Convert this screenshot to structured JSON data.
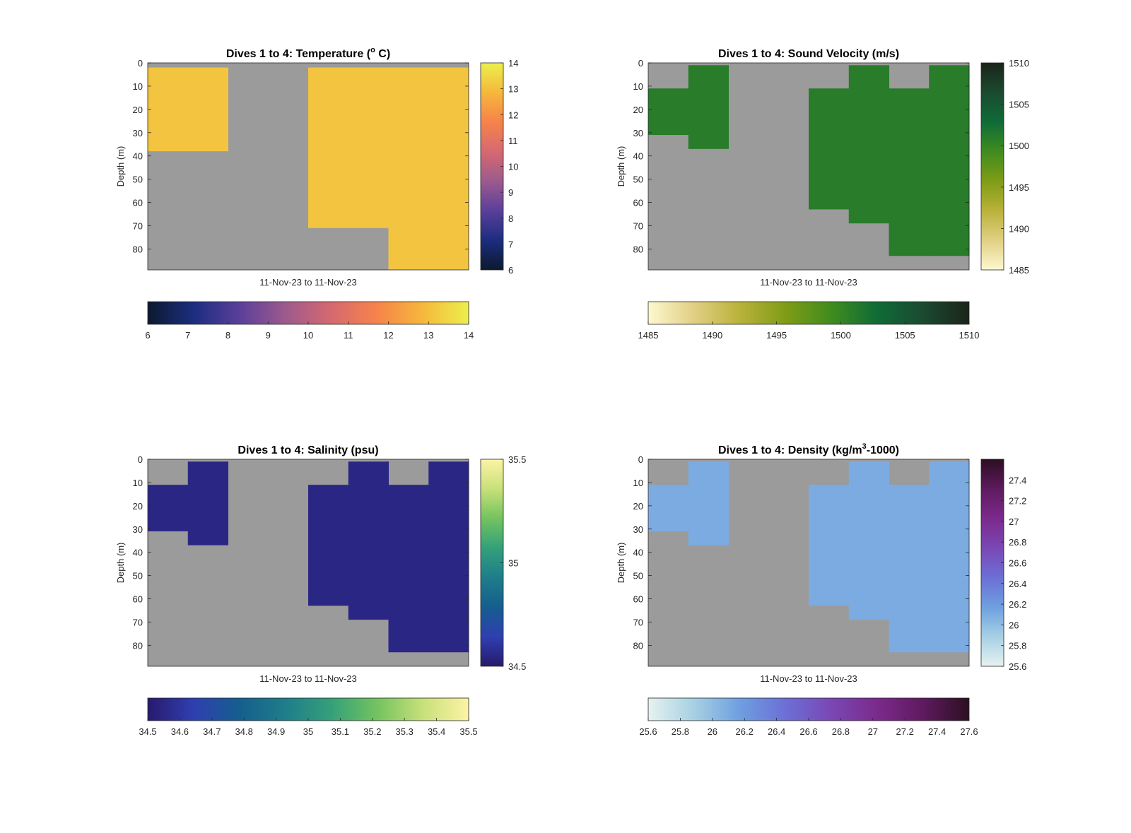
{
  "figure": {
    "background": "#ffffff",
    "no_data_color": "#9b9b9b"
  },
  "chart_data": [
    {
      "type": "heatmap",
      "title": "Dives 1 to 4: Temperature (",
      "title_sup": "o",
      "title_suffix": " C)",
      "xlabel": "11-Nov-23 to 11-Nov-23",
      "ylabel": "Depth (m)",
      "ylim": [
        0,
        89
      ],
      "yticks": [
        0,
        10,
        20,
        30,
        40,
        50,
        60,
        70,
        80
      ],
      "columns": [
        {
          "x": 1,
          "depth_min": 2,
          "depth_max": 38
        },
        {
          "x": 2,
          "depth_min": null,
          "depth_max": null
        },
        {
          "x": 3,
          "depth_min": 2,
          "depth_max": 71
        },
        {
          "x": 4,
          "depth_min": 2,
          "depth_max": 89
        }
      ],
      "value": 13.1,
      "colorbar": {
        "colors": [
          "#0b1a2e",
          "#1c2d80",
          "#5a3f9a",
          "#9d5a8d",
          "#d66970",
          "#f6834a",
          "#f5b83c",
          "#ecf04d"
        ],
        "limits": [
          6,
          14
        ],
        "ticks": [
          "6",
          "7",
          "8",
          "9",
          "10",
          "11",
          "12",
          "13",
          "14"
        ],
        "ticks_vertical": [
          "6",
          "7",
          "8",
          "9",
          "10",
          "11",
          "12",
          "13",
          "14"
        ]
      }
    },
    {
      "type": "heatmap",
      "title": "Dives 1 to 4: Sound Velocity (m/s)",
      "title_sup": "",
      "title_suffix": "",
      "xlabel": "11-Nov-23 to 11-Nov-23",
      "ylabel": "Depth (m)",
      "ylim": [
        0,
        89
      ],
      "yticks": [
        0,
        10,
        20,
        30,
        40,
        50,
        60,
        70,
        80
      ],
      "columns": [
        {
          "x": 1,
          "depth_min": 11,
          "depth_max": 31
        },
        {
          "x": 2,
          "depth_min": 1,
          "depth_max": 37
        },
        {
          "x": 3,
          "depth_min": null,
          "depth_max": null
        },
        {
          "x": 4,
          "depth_min": null,
          "depth_max": null
        },
        {
          "x": 5,
          "depth_min": 11,
          "depth_max": 63
        },
        {
          "x": 6,
          "depth_min": 1,
          "depth_max": 69
        },
        {
          "x": 7,
          "depth_min": 11,
          "depth_max": 83
        },
        {
          "x": 8,
          "depth_min": 1,
          "depth_max": 83
        }
      ],
      "value": 1501,
      "colorbar": {
        "colors": [
          "#fdf8cf",
          "#e1cf84",
          "#b9b23a",
          "#7f9c16",
          "#3f8c1e",
          "#0f6b37",
          "#1b4a30",
          "#1b2419"
        ],
        "limits": [
          1485,
          1510
        ],
        "ticks": [
          "1485",
          "1490",
          "1495",
          "1500",
          "1505",
          "1510"
        ],
        "ticks_vertical": [
          "1485",
          "1490",
          "1495",
          "1500",
          "1505",
          "1510"
        ]
      }
    },
    {
      "type": "heatmap",
      "title": "Dives 1 to 4: Salinity (psu)",
      "title_sup": "",
      "title_suffix": "",
      "xlabel": "11-Nov-23 to 11-Nov-23",
      "ylabel": "Depth (m)",
      "ylim": [
        0,
        89
      ],
      "yticks": [
        0,
        10,
        20,
        30,
        40,
        50,
        60,
        70,
        80
      ],
      "columns": [
        {
          "x": 1,
          "depth_min": 11,
          "depth_max": 31
        },
        {
          "x": 2,
          "depth_min": 1,
          "depth_max": 37
        },
        {
          "x": 3,
          "depth_min": null,
          "depth_max": null
        },
        {
          "x": 4,
          "depth_min": null,
          "depth_max": null
        },
        {
          "x": 5,
          "depth_min": 11,
          "depth_max": 63
        },
        {
          "x": 6,
          "depth_min": 1,
          "depth_max": 69
        },
        {
          "x": 7,
          "depth_min": 11,
          "depth_max": 83
        },
        {
          "x": 8,
          "depth_min": 1,
          "depth_max": 83
        }
      ],
      "value": 34.55,
      "colorbar": {
        "colors": [
          "#281a6c",
          "#2f3fb0",
          "#155e8e",
          "#1f7d8a",
          "#34a07a",
          "#73c35f",
          "#c8e07a",
          "#fcf3a5"
        ],
        "limits": [
          34.5,
          35.5
        ],
        "ticks": [
          "34.5",
          "34.6",
          "34.7",
          "34.8",
          "34.9",
          "35",
          "35.1",
          "35.2",
          "35.3",
          "35.4",
          "35.5"
        ],
        "ticks_vertical": [
          "34.5",
          "35",
          "35.5"
        ]
      }
    },
    {
      "type": "heatmap",
      "title": "Dives 1 to 4: Density (kg/m",
      "title_sup": "3",
      "title_suffix": "-1000)",
      "xlabel": "11-Nov-23 to 11-Nov-23",
      "ylabel": "Depth (m)",
      "ylim": [
        0,
        89
      ],
      "yticks": [
        0,
        10,
        20,
        30,
        40,
        50,
        60,
        70,
        80
      ],
      "columns": [
        {
          "x": 1,
          "depth_min": 11,
          "depth_max": 31
        },
        {
          "x": 2,
          "depth_min": 1,
          "depth_max": 37
        },
        {
          "x": 3,
          "depth_min": null,
          "depth_max": null
        },
        {
          "x": 4,
          "depth_min": null,
          "depth_max": null
        },
        {
          "x": 5,
          "depth_min": 11,
          "depth_max": 63
        },
        {
          "x": 6,
          "depth_min": 1,
          "depth_max": 69
        },
        {
          "x": 7,
          "depth_min": 11,
          "depth_max": 83
        },
        {
          "x": 8,
          "depth_min": 1,
          "depth_max": 83
        }
      ],
      "value": 26.1,
      "colorbar": {
        "colors": [
          "#e6f2f1",
          "#a7d0e3",
          "#6e9fe0",
          "#6c6fd6",
          "#7a47b4",
          "#7b2a8c",
          "#5e1a5e",
          "#2c0f22"
        ],
        "limits": [
          25.6,
          27.6
        ],
        "ticks": [
          "25.6",
          "25.8",
          "26",
          "26.2",
          "26.4",
          "26.6",
          "26.8",
          "27",
          "27.2",
          "27.4",
          "27.6"
        ],
        "ticks_vertical": [
          "25.6",
          "25.8",
          "26",
          "26.2",
          "26.4",
          "26.6",
          "26.8",
          "27",
          "27.2",
          "27.4"
        ]
      }
    }
  ]
}
